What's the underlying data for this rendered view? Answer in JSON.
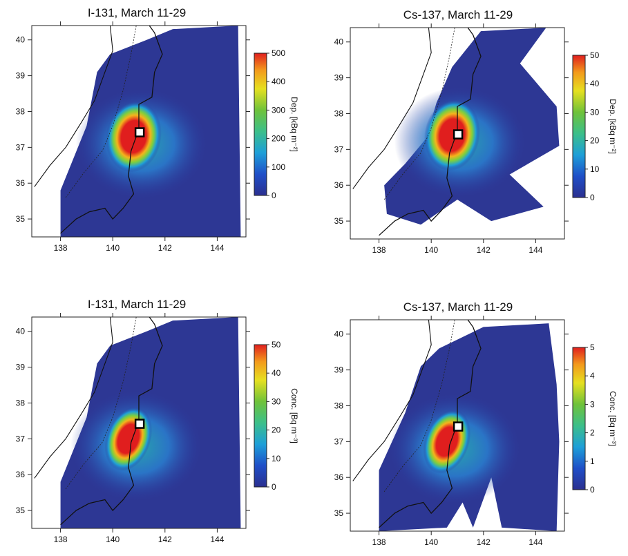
{
  "figure": {
    "panels": [
      {
        "title": "I-131, March 11-29",
        "colorbar_label": "Dep. [kBq m⁻²]"
      },
      {
        "title": "Cs-137, March 11-29",
        "colorbar_label": "Dep. [kBq m⁻²]"
      },
      {
        "title": "I-131, March 11-29",
        "colorbar_label": "Conc. [Bq m⁻³]"
      },
      {
        "title": "Cs-137, March 11-29",
        "colorbar_label": "Conc. [Bq m⁻³]"
      }
    ]
  },
  "chart_data": [
    {
      "type": "heatmap",
      "title": "I-131, March 11-29",
      "xlabel": "",
      "ylabel": "",
      "x_ticks": [
        138,
        140,
        142,
        144
      ],
      "y_ticks": [
        35,
        36,
        37,
        38,
        39,
        40
      ],
      "xlim": [
        136.9,
        145.1
      ],
      "ylim": [
        34.5,
        40.4
      ],
      "colorbar": {
        "label": "Dep. [kBq m⁻²]",
        "ticks": [
          0,
          100,
          200,
          300,
          400,
          500
        ],
        "range": [
          0,
          500
        ]
      },
      "source_marker": {
        "lon": 141.03,
        "lat": 37.42
      },
      "plume_center": {
        "lon": 140.8,
        "lat": 37.3
      },
      "peak_value": 500
    },
    {
      "type": "heatmap",
      "title": "Cs-137, March 11-29",
      "xlabel": "",
      "ylabel": "",
      "x_ticks": [
        138,
        140,
        142,
        144
      ],
      "y_ticks": [
        35,
        36,
        37,
        38,
        39,
        40
      ],
      "xlim": [
        136.9,
        145.1
      ],
      "ylim": [
        34.5,
        40.4
      ],
      "colorbar": {
        "label": "Dep. [kBq m⁻²]",
        "ticks": [
          0,
          10,
          20,
          30,
          40,
          50
        ],
        "range": [
          0,
          50
        ]
      },
      "source_marker": {
        "lon": 141.03,
        "lat": 37.42
      },
      "plume_center": {
        "lon": 140.8,
        "lat": 37.4
      },
      "peak_value": 50
    },
    {
      "type": "heatmap",
      "title": "I-131, March 11-29",
      "xlabel": "",
      "ylabel": "",
      "x_ticks": [
        138,
        140,
        142,
        144
      ],
      "y_ticks": [
        35,
        36,
        37,
        38,
        39,
        40
      ],
      "xlim": [
        136.9,
        145.1
      ],
      "ylim": [
        34.5,
        40.4
      ],
      "colorbar": {
        "label": "Conc. [Bq m⁻³]",
        "ticks": [
          0,
          10,
          20,
          30,
          40,
          50
        ],
        "range": [
          0,
          50
        ]
      },
      "source_marker": {
        "lon": 141.03,
        "lat": 37.42
      },
      "plume_center": {
        "lon": 140.6,
        "lat": 37.0
      },
      "peak_value": 50
    },
    {
      "type": "heatmap",
      "title": "Cs-137, March 11-29",
      "xlabel": "",
      "ylabel": "",
      "x_ticks": [
        138,
        140,
        142,
        144
      ],
      "y_ticks": [
        35,
        36,
        37,
        38,
        39,
        40
      ],
      "xlim": [
        136.9,
        145.1
      ],
      "ylim": [
        34.5,
        40.4
      ],
      "colorbar": {
        "label": "Conc. [Bq m⁻³]",
        "ticks": [
          0,
          1,
          2,
          3,
          4,
          5
        ],
        "range": [
          0,
          5
        ]
      },
      "source_marker": {
        "lon": 141.03,
        "lat": 37.42
      },
      "plume_center": {
        "lon": 140.6,
        "lat": 37.0
      },
      "peak_value": 5
    }
  ]
}
